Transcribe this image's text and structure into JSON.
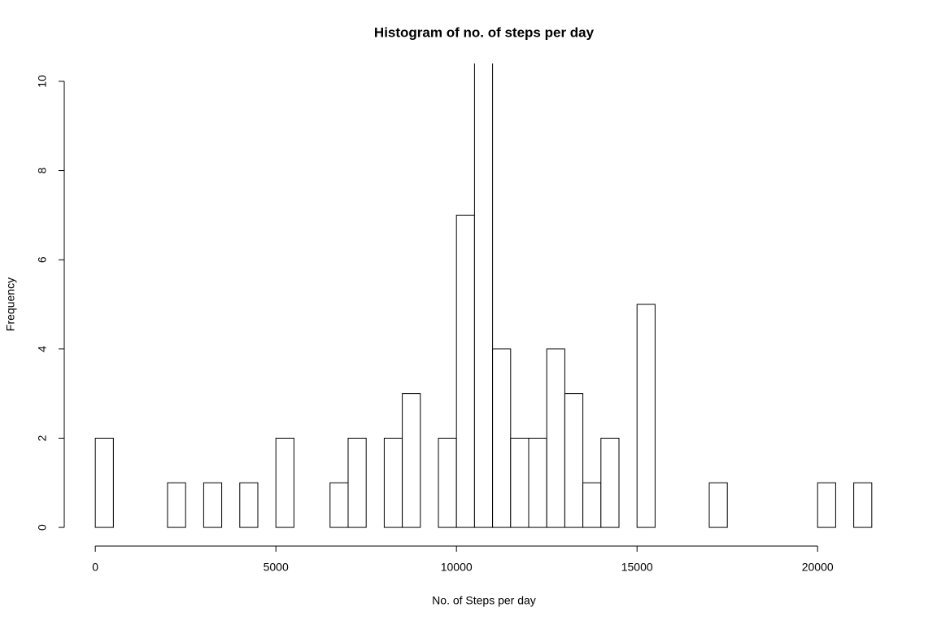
{
  "chart_data": {
    "type": "histogram",
    "title": "Histogram of no. of steps per day",
    "x_label": "No. of Steps per day",
    "y_label": "Frequency",
    "bins": [
      0,
      500,
      1000,
      1500,
      2000,
      2500,
      3000,
      3500,
      4000,
      4500,
      5000,
      5500,
      6000,
      6500,
      7000,
      7500,
      8000,
      8500,
      9000,
      9500,
      10000,
      10500,
      11000,
      11500,
      12000,
      12500,
      13000,
      13500,
      14000,
      14500,
      15000,
      15500,
      16000,
      16500,
      17000,
      17500,
      18000,
      18500,
      19000,
      19500,
      20000,
      20500,
      21000,
      21500
    ],
    "values": [
      2,
      0,
      0,
      0,
      1,
      0,
      1,
      0,
      1,
      0,
      2,
      0,
      0,
      1,
      2,
      0,
      2,
      3,
      0,
      2,
      7,
      11,
      4,
      2,
      2,
      4,
      3,
      1,
      2,
      0,
      5,
      0,
      0,
      0,
      1,
      0,
      0,
      0,
      0,
      0,
      1,
      0,
      1
    ],
    "color": "#ffffff",
    "xlim": [
      -860,
      22360
    ],
    "ylim": [
      -0.4,
      10.4
    ],
    "xticks": [
      0,
      5000,
      10000,
      15000,
      20000
    ],
    "yticks": [
      0,
      2,
      4,
      6,
      8,
      10
    ]
  }
}
